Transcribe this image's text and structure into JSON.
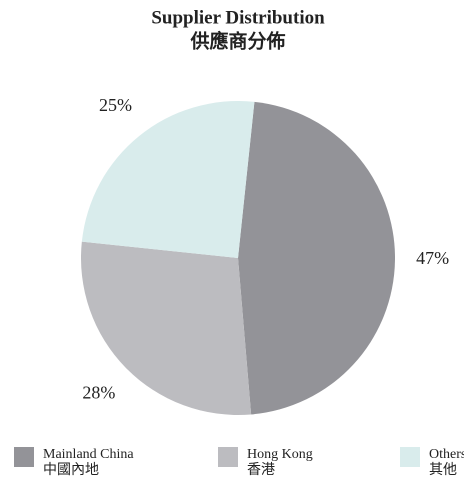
{
  "chart_data": {
    "type": "pie",
    "title": "Supplier Distribution",
    "subtitle": "供應商分佈",
    "categories": [
      "Mainland China",
      "Hong Kong",
      "Others"
    ],
    "categories_zh": [
      "中國內地",
      "香港",
      "其他"
    ],
    "values": [
      47,
      28,
      25
    ],
    "value_labels": [
      "47%",
      "28%",
      "25%"
    ],
    "colors": [
      "#939398",
      "#bcbcc0",
      "#d9ecec"
    ],
    "legend": "bottom"
  }
}
